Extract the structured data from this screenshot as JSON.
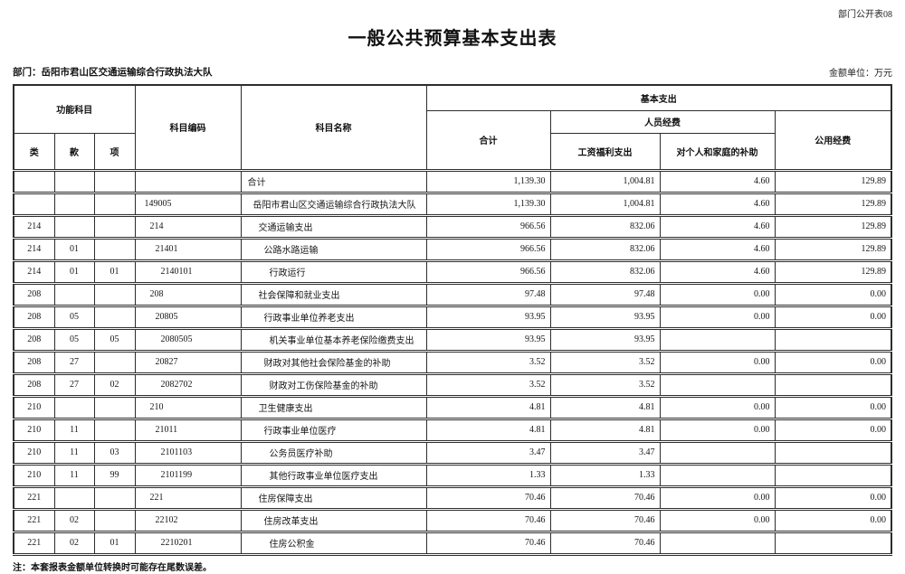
{
  "page": {
    "doc_code": "部门公开表08",
    "title": "一般公共预算基本支出表",
    "department": "部门：岳阳市君山区交通运输综合行政执法大队",
    "unit": "金额单位：万元",
    "note": "注：本套报表金额单位转换时可能存在尾数误差。"
  },
  "table": {
    "headers": {
      "function_group": "功能科目",
      "cls": "类",
      "section": "款",
      "item": "项",
      "subject_code": "科目编码",
      "subject_name": "科目名称",
      "basic_expenditure": "基本支出",
      "total": "合计",
      "personnel": "人员经费",
      "wage_welfare": "工资福利支出",
      "family_subsidy": "对个人和家庭的补助",
      "public_funds": "公用经费"
    },
    "rows": [
      {
        "cls": "",
        "item": "",
        "sub": "",
        "code": "",
        "name": "合计",
        "level": 0,
        "total": "1,139.30",
        "wage": "1,004.81",
        "subsidy": "4.60",
        "pub": "129.89"
      },
      {
        "cls": "",
        "item": "",
        "sub": "",
        "code": "149005",
        "name": "岳阳市君山区交通运输综合行政执法大队",
        "level": 1,
        "total": "1,139.30",
        "wage": "1,004.81",
        "subsidy": "4.60",
        "pub": "129.89"
      },
      {
        "cls": "214",
        "item": "",
        "sub": "",
        "code": "214",
        "name": "交通运输支出",
        "level": 2,
        "total": "966.56",
        "wage": "832.06",
        "subsidy": "4.60",
        "pub": "129.89"
      },
      {
        "cls": "214",
        "item": "01",
        "sub": "",
        "code": "21401",
        "name": "公路水路运输",
        "level": 3,
        "total": "966.56",
        "wage": "832.06",
        "subsidy": "4.60",
        "pub": "129.89"
      },
      {
        "cls": "214",
        "item": "01",
        "sub": "01",
        "code": "2140101",
        "name": "行政运行",
        "level": 4,
        "total": "966.56",
        "wage": "832.06",
        "subsidy": "4.60",
        "pub": "129.89"
      },
      {
        "cls": "208",
        "item": "",
        "sub": "",
        "code": "208",
        "name": "社会保障和就业支出",
        "level": 2,
        "total": "97.48",
        "wage": "97.48",
        "subsidy": "0.00",
        "pub": "0.00"
      },
      {
        "cls": "208",
        "item": "05",
        "sub": "",
        "code": "20805",
        "name": "行政事业单位养老支出",
        "level": 3,
        "total": "93.95",
        "wage": "93.95",
        "subsidy": "0.00",
        "pub": "0.00"
      },
      {
        "cls": "208",
        "item": "05",
        "sub": "05",
        "code": "2080505",
        "name": "机关事业单位基本养老保险缴费支出",
        "level": 4,
        "total": "93.95",
        "wage": "93.95",
        "subsidy": "",
        "pub": ""
      },
      {
        "cls": "208",
        "item": "27",
        "sub": "",
        "code": "20827",
        "name": "财政对其他社会保险基金的补助",
        "level": 3,
        "total": "3.52",
        "wage": "3.52",
        "subsidy": "0.00",
        "pub": "0.00"
      },
      {
        "cls": "208",
        "item": "27",
        "sub": "02",
        "code": "2082702",
        "name": "财政对工伤保险基金的补助",
        "level": 4,
        "total": "3.52",
        "wage": "3.52",
        "subsidy": "",
        "pub": ""
      },
      {
        "cls": "210",
        "item": "",
        "sub": "",
        "code": "210",
        "name": "卫生健康支出",
        "level": 2,
        "total": "4.81",
        "wage": "4.81",
        "subsidy": "0.00",
        "pub": "0.00"
      },
      {
        "cls": "210",
        "item": "11",
        "sub": "",
        "code": "21011",
        "name": "行政事业单位医疗",
        "level": 3,
        "total": "4.81",
        "wage": "4.81",
        "subsidy": "0.00",
        "pub": "0.00"
      },
      {
        "cls": "210",
        "item": "11",
        "sub": "03",
        "code": "2101103",
        "name": "公务员医疗补助",
        "level": 4,
        "total": "3.47",
        "wage": "3.47",
        "subsidy": "",
        "pub": ""
      },
      {
        "cls": "210",
        "item": "11",
        "sub": "99",
        "code": "2101199",
        "name": "其他行政事业单位医疗支出",
        "level": 4,
        "total": "1.33",
        "wage": "1.33",
        "subsidy": "",
        "pub": ""
      },
      {
        "cls": "221",
        "item": "",
        "sub": "",
        "code": "221",
        "name": "住房保障支出",
        "level": 2,
        "total": "70.46",
        "wage": "70.46",
        "subsidy": "0.00",
        "pub": "0.00"
      },
      {
        "cls": "221",
        "item": "02",
        "sub": "",
        "code": "22102",
        "name": "住房改革支出",
        "level": 3,
        "total": "70.46",
        "wage": "70.46",
        "subsidy": "0.00",
        "pub": "0.00"
      },
      {
        "cls": "221",
        "item": "02",
        "sub": "01",
        "code": "2210201",
        "name": "住房公积金",
        "level": 4,
        "total": "70.46",
        "wage": "70.46",
        "subsidy": "",
        "pub": ""
      }
    ]
  }
}
